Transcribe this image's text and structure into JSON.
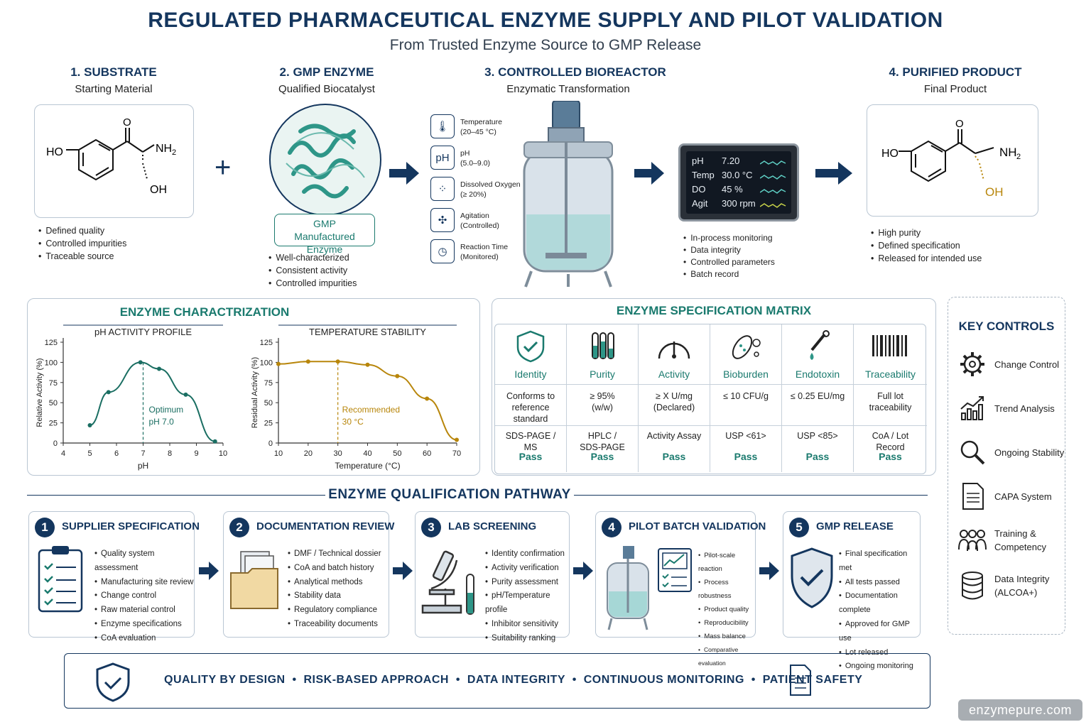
{
  "title": "REGULATED PHARMACEUTICAL ENZYME SUPPLY AND PILOT VALIDATION",
  "subtitle": "From Trusted Enzyme Source to GMP Release",
  "stages": [
    {
      "heading": "1. SUBSTRATE",
      "sub": "Starting Material",
      "bullets": [
        "Defined quality",
        "Controlled impurities",
        "Traceable source"
      ]
    },
    {
      "heading": "2. GMP ENZYME",
      "sub": "Qualified Biocatalyst",
      "badge": "GMP Manufactured Enzyme",
      "bullets": [
        "Well-characterized",
        "Consistent activity",
        "Controlled impurities"
      ]
    },
    {
      "heading": "3. CONTROLLED BIOREACTOR",
      "sub": "Enzymatic Transformation",
      "bullets": [
        "In-process monitoring",
        "Data integrity",
        "Controlled parameters",
        "Batch record"
      ]
    },
    {
      "heading": "4. PURIFIED PRODUCT",
      "sub": "Final Product",
      "bullets": [
        "High purity",
        "Defined specification",
        "Released for intended use"
      ]
    }
  ],
  "molecule_labels": {
    "o": "O",
    "ho": "HO",
    "nh2": "NH",
    "sub2": "2",
    "oh": "OH"
  },
  "plus": "+",
  "reactor_params": [
    {
      "icon": "thermometer-icon",
      "symbol": "🌡",
      "label": "Temperature",
      "range": "(20–45 °C)"
    },
    {
      "icon": "ph-icon",
      "symbol": "pH",
      "label": "pH",
      "range": "(5.0–9.0)"
    },
    {
      "icon": "oxygen-icon",
      "symbol": "∘∘",
      "label": "Dissolved Oxygen",
      "range": "(≥ 20%)"
    },
    {
      "icon": "agitation-icon",
      "symbol": "✣",
      "label": "Agitation",
      "range": "(Controlled)"
    },
    {
      "icon": "clock-icon",
      "symbol": "◷",
      "label": "Reaction Time",
      "range": "(Monitored)"
    }
  ],
  "monitor": [
    {
      "k": "pH",
      "v": "7.20"
    },
    {
      "k": "Temp",
      "v": "30.0 °C"
    },
    {
      "k": "DO",
      "v": "45 %"
    },
    {
      "k": "Agit",
      "v": "300 rpm"
    }
  ],
  "characterization": {
    "heading": "ENZYME CHARACTRIZATION",
    "ph_chart": {
      "type": "line",
      "title": "pH ACTIVITY PROFILE",
      "xlabel": "pH",
      "ylabel": "Relative Activity (%)",
      "x": [
        5,
        5.7,
        6.9,
        7.6,
        8.6,
        9.7
      ],
      "values": [
        22,
        63,
        100,
        92,
        60,
        2
      ],
      "xlim": [
        4,
        10
      ],
      "ylim": [
        0,
        125
      ],
      "xticks": [
        4,
        5,
        6,
        7,
        8,
        9,
        10
      ],
      "yticks": [
        0,
        25,
        50,
        75,
        100,
        125
      ],
      "annotation": [
        "Optimum",
        "pH 7.0"
      ],
      "marker": 7
    },
    "temp_chart": {
      "type": "line",
      "title": "TEMPERATURE STABILITY",
      "xlabel": "Temperature (°C)",
      "ylabel": "Residual Activity (%)",
      "x": [
        10,
        20,
        30,
        40,
        50,
        60,
        70
      ],
      "values": [
        98,
        101,
        101,
        97,
        83,
        55,
        4
      ],
      "xlim": [
        10,
        70
      ],
      "ylim": [
        0,
        125
      ],
      "xticks": [
        10,
        20,
        30,
        40,
        50,
        60,
        70
      ],
      "yticks": [
        0,
        25,
        50,
        75,
        100,
        125
      ],
      "annotation": [
        "Recommended",
        "30 °C"
      ],
      "marker": 30
    }
  },
  "spec_matrix": {
    "heading": "ENZYME SPECIFICATION MATRIX",
    "columns": [
      {
        "icon": "shield-check-icon",
        "name": "Identity",
        "spec": [
          "Conforms to",
          "reference",
          "standard"
        ],
        "method": [
          "SDS-PAGE /",
          "MS"
        ],
        "result": "Pass"
      },
      {
        "icon": "test-tubes-icon",
        "name": "Purity",
        "spec": [
          "≥ 95%",
          "(w/w)"
        ],
        "method": [
          "HPLC /",
          "SDS-PAGE"
        ],
        "result": "Pass"
      },
      {
        "icon": "gauge-icon",
        "name": "Activity",
        "spec": [
          "≥ X U/mg",
          "(Declared)"
        ],
        "method": [
          "Activity Assay"
        ],
        "result": "Pass"
      },
      {
        "icon": "microbe-icon",
        "name": "Bioburden",
        "spec": [
          "≤ 10 CFU/g"
        ],
        "method": [
          "USP <61>"
        ],
        "result": "Pass"
      },
      {
        "icon": "dropper-icon",
        "name": "Endotoxin",
        "spec": [
          "≤ 0.25 EU/mg"
        ],
        "method": [
          "USP <85>"
        ],
        "result": "Pass"
      },
      {
        "icon": "barcode-icon",
        "name": "Traceability",
        "spec": [
          "Full lot",
          "traceability"
        ],
        "method": [
          "CoA / Lot",
          "Record"
        ],
        "result": "Pass"
      }
    ]
  },
  "key_controls": {
    "heading": "KEY CONTROLS",
    "items": [
      {
        "icon": "gear-icon",
        "label": [
          "Change Control"
        ]
      },
      {
        "icon": "trend-icon",
        "label": [
          "Trend Analysis"
        ]
      },
      {
        "icon": "magnifier-icon",
        "label": [
          "Ongoing Stability"
        ]
      },
      {
        "icon": "document-icon",
        "label": [
          "CAPA System"
        ]
      },
      {
        "icon": "people-icon",
        "label": [
          "Training &",
          "Competency"
        ]
      },
      {
        "icon": "database-icon",
        "label": [
          "Data Integrity",
          "(ALCOA+)"
        ]
      }
    ]
  },
  "pathway": {
    "heading": "ENZYME QUALIFICATION PATHWAY",
    "steps": [
      {
        "num": "1",
        "title": "SUPPLIER SPECIFICATION",
        "bullets": [
          "Quality system assessment",
          "Manufacturing site review",
          "Change control",
          "Raw material control",
          "Enzyme specifications",
          "CoA evaluation"
        ]
      },
      {
        "num": "2",
        "title": "DOCUMENTATION REVIEW",
        "bullets": [
          "DMF / Technical dossier",
          "CoA and batch history",
          "Analytical methods",
          "Stability data",
          "Regulatory compliance",
          "Traceability documents"
        ]
      },
      {
        "num": "3",
        "title": "LAB SCREENING",
        "bullets": [
          "Identity confirmation",
          "Activity verification",
          "Purity assessment",
          "pH/Temperature profile",
          "Inhibitor sensitivity",
          "Suitability ranking"
        ]
      },
      {
        "num": "4",
        "title": "PILOT BATCH VALIDATION",
        "bullets": [
          "Pilot-scale reaction",
          "Process robustness",
          "Product quality",
          "Reproducibility",
          "Mass balance",
          "Comparative evaluation"
        ]
      },
      {
        "num": "5",
        "title": "GMP RELEASE",
        "bullets": [
          "Final specification met",
          "All tests passed",
          "Documentation complete",
          "Approved for GMP use",
          "Lot released",
          "Ongoing monitoring"
        ]
      }
    ]
  },
  "footer_banner": "QUALITY BY DESIGN  •  RISK-BASED APPROACH  •  DATA INTEGRITY  •  CONTINUOUS MONITORING  •  PATIENT SAFETY",
  "watermark": "enzymepure.com",
  "colors": {
    "navy": "#14365e",
    "teal": "#1a7a6e",
    "gold": "#b8860b"
  }
}
